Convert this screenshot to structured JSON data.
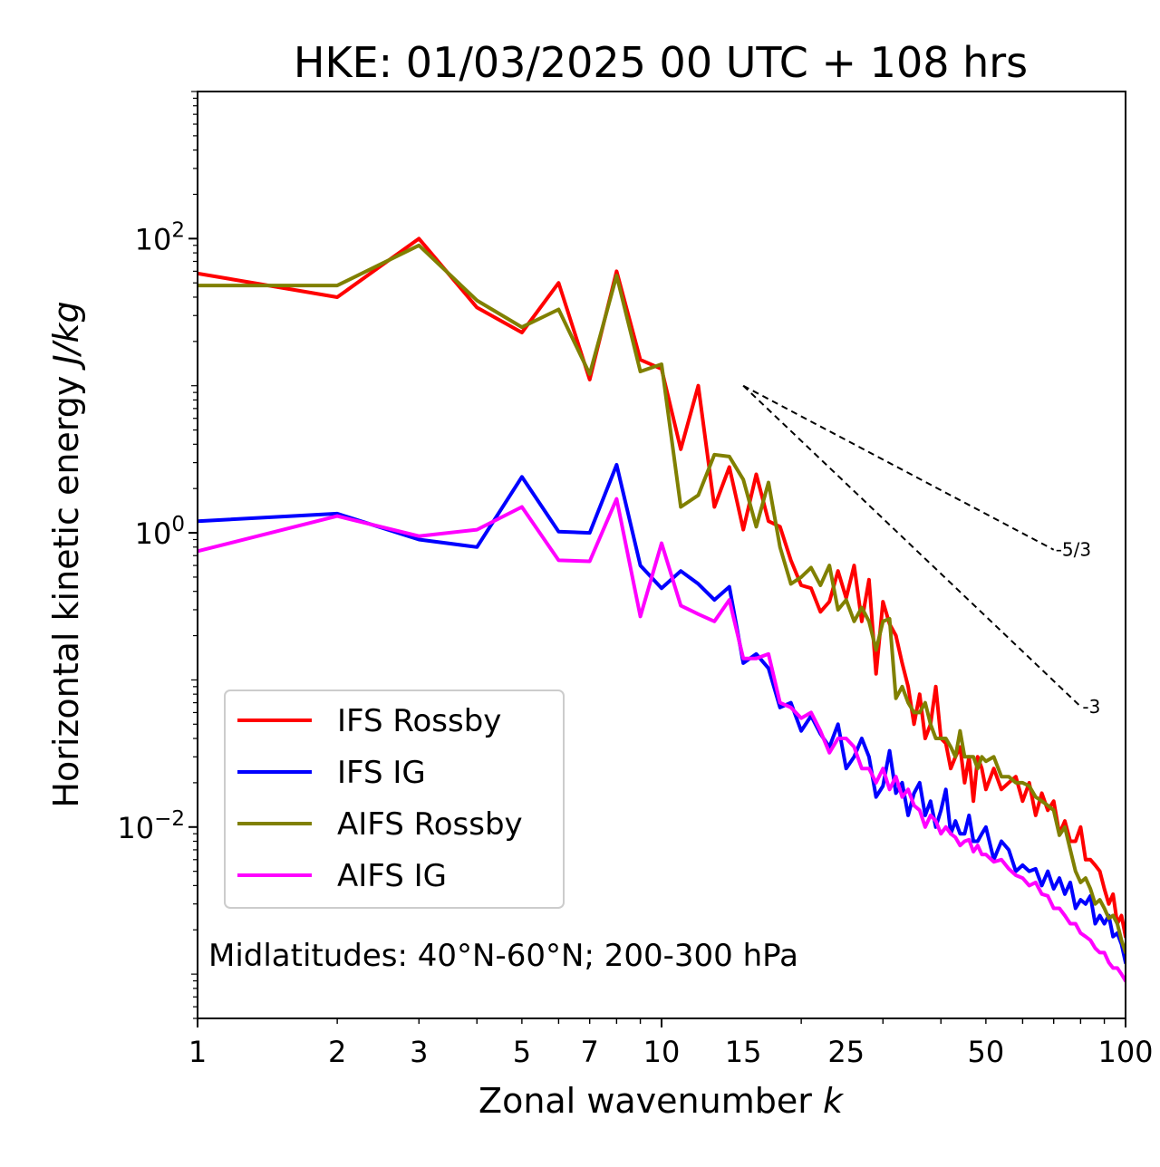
{
  "chart_data": {
    "type": "line",
    "title": "HKE: 01/03/2025 00 UTC + 108 hrs",
    "xlabel": "Zonal wavenumber",
    "xlabel_var": "k",
    "ylabel": "Horizontal kinetic energy",
    "ylabel_units": "J/kg",
    "xscale": "log",
    "yscale": "log",
    "xlim": [
      1,
      100
    ],
    "ylim": [
      0.0005,
      1000
    ],
    "xticks": [
      {
        "value": 1,
        "label": "1"
      },
      {
        "value": 2,
        "label": "2"
      },
      {
        "value": 3,
        "label": "3"
      },
      {
        "value": 5,
        "label": "5"
      },
      {
        "value": 7,
        "label": "7"
      },
      {
        "value": 10,
        "label": "10"
      },
      {
        "value": 15,
        "label": "15"
      },
      {
        "value": 25,
        "label": "25"
      },
      {
        "value": 50,
        "label": "50"
      },
      {
        "value": 100,
        "label": "100"
      }
    ],
    "yticks": [
      {
        "value": 0.01,
        "base": "10",
        "exp": "−2"
      },
      {
        "value": 1,
        "base": "10",
        "exp": "0"
      },
      {
        "value": 100,
        "base": "10",
        "exp": "2"
      }
    ],
    "annotation": "Midlatitudes: 40°N-60°N; 200-300 hPa",
    "legend_position": "lower-left",
    "grid": false,
    "reference_lines": [
      {
        "label": "-5/3",
        "slope": -1.6667,
        "x_start": 15,
        "y_start": 10,
        "x_end": 70
      },
      {
        "label": "-3",
        "slope": -3,
        "x_start": 15,
        "y_start": 10,
        "x_end": 80
      }
    ],
    "series": [
      {
        "name": "IFS Rossby",
        "color": "#ff0000",
        "x": [
          1,
          2,
          3,
          4,
          5,
          6,
          7,
          8,
          9,
          10,
          11,
          12,
          13,
          14,
          15,
          16,
          17,
          18,
          19,
          20,
          21,
          22,
          23,
          24,
          25,
          26,
          27,
          28,
          29,
          30,
          31,
          32,
          33,
          34,
          35,
          36,
          37,
          38,
          39,
          40,
          41,
          42,
          43,
          44,
          45,
          46,
          47,
          48,
          49,
          50,
          52,
          54,
          56,
          58,
          60,
          62,
          64,
          66,
          68,
          70,
          72,
          74,
          76,
          78,
          80,
          82,
          84,
          86,
          88,
          90,
          92,
          94,
          96,
          98,
          100
        ],
        "y": [
          58,
          40,
          100,
          34,
          23,
          50,
          11,
          60,
          15,
          13,
          3.7,
          10,
          1.5,
          2.8,
          1.05,
          2.5,
          1.2,
          1.1,
          0.65,
          0.44,
          0.42,
          0.29,
          0.34,
          0.55,
          0.36,
          0.6,
          0.25,
          0.48,
          0.11,
          0.34,
          0.24,
          0.2,
          0.13,
          0.09,
          0.05,
          0.08,
          0.04,
          0.05,
          0.09,
          0.04,
          0.037,
          0.025,
          0.03,
          0.035,
          0.02,
          0.03,
          0.015,
          0.03,
          0.025,
          0.018,
          0.025,
          0.018,
          0.02,
          0.022,
          0.015,
          0.02,
          0.012,
          0.017,
          0.013,
          0.015,
          0.009,
          0.011,
          0.008,
          0.008,
          0.01,
          0.006,
          0.006,
          0.0055,
          0.005,
          0.0038,
          0.003,
          0.0035,
          0.0022,
          0.0025,
          0.0018
        ]
      },
      {
        "name": "IFS IG",
        "color": "#0000ff",
        "x": [
          1,
          2,
          3,
          4,
          5,
          6,
          7,
          8,
          9,
          10,
          11,
          12,
          13,
          14,
          15,
          16,
          17,
          18,
          19,
          20,
          21,
          22,
          23,
          24,
          25,
          26,
          27,
          28,
          29,
          30,
          31,
          32,
          33,
          34,
          35,
          36,
          37,
          38,
          39,
          40,
          41,
          42,
          43,
          44,
          45,
          46,
          47,
          48,
          49,
          50,
          52,
          54,
          56,
          58,
          60,
          62,
          64,
          66,
          68,
          70,
          72,
          74,
          76,
          78,
          80,
          82,
          84,
          86,
          88,
          90,
          92,
          94,
          96,
          98,
          100
        ],
        "y": [
          1.2,
          1.35,
          0.9,
          0.8,
          2.4,
          1.02,
          1.0,
          2.9,
          0.6,
          0.42,
          0.55,
          0.45,
          0.35,
          0.43,
          0.13,
          0.15,
          0.12,
          0.065,
          0.07,
          0.045,
          0.057,
          0.043,
          0.035,
          0.05,
          0.025,
          0.03,
          0.04,
          0.03,
          0.016,
          0.019,
          0.033,
          0.017,
          0.02,
          0.012,
          0.017,
          0.02,
          0.012,
          0.015,
          0.01,
          0.013,
          0.018,
          0.009,
          0.011,
          0.009,
          0.009,
          0.012,
          0.008,
          0.008,
          0.009,
          0.01,
          0.006,
          0.008,
          0.007,
          0.005,
          0.0055,
          0.005,
          0.0052,
          0.004,
          0.005,
          0.0038,
          0.0045,
          0.0035,
          0.0042,
          0.0028,
          0.0032,
          0.003,
          0.0034,
          0.0022,
          0.0025,
          0.0022,
          0.0025,
          0.0018,
          0.0019,
          0.0016,
          0.0012
        ]
      },
      {
        "name": "AIFS Rossby",
        "color": "#808000",
        "x": [
          1,
          2,
          3,
          4,
          5,
          6,
          7,
          8,
          9,
          10,
          11,
          12,
          13,
          14,
          15,
          16,
          17,
          18,
          19,
          20,
          21,
          22,
          23,
          24,
          25,
          26,
          27,
          28,
          29,
          30,
          31,
          32,
          33,
          34,
          35,
          36,
          37,
          38,
          39,
          40,
          41,
          42,
          43,
          44,
          45,
          46,
          47,
          48,
          49,
          50,
          52,
          54,
          56,
          58,
          60,
          62,
          64,
          66,
          68,
          70,
          72,
          74,
          76,
          78,
          80,
          82,
          84,
          86,
          88,
          90,
          92,
          94,
          96,
          98,
          100
        ],
        "y": [
          48,
          48,
          90,
          38,
          25,
          33,
          12,
          56,
          12.5,
          14,
          1.5,
          1.8,
          3.4,
          3.3,
          2.3,
          1.1,
          2.2,
          0.8,
          0.45,
          0.5,
          0.58,
          0.44,
          0.6,
          0.3,
          0.35,
          0.25,
          0.31,
          0.25,
          0.16,
          0.25,
          0.26,
          0.075,
          0.09,
          0.07,
          0.06,
          0.06,
          0.07,
          0.05,
          0.04,
          0.04,
          0.04,
          0.035,
          0.03,
          0.045,
          0.03,
          0.03,
          0.03,
          0.025,
          0.03,
          0.028,
          0.03,
          0.022,
          0.022,
          0.02,
          0.02,
          0.019,
          0.016,
          0.015,
          0.014,
          0.013,
          0.0088,
          0.01,
          0.007,
          0.005,
          0.0042,
          0.0045,
          0.0038,
          0.003,
          0.0032,
          0.0028,
          0.0024,
          0.0025,
          0.0022,
          0.0017,
          0.0014
        ]
      },
      {
        "name": "AIFS IG",
        "color": "#ff00ff",
        "x": [
          1,
          2,
          3,
          4,
          5,
          6,
          7,
          8,
          9,
          10,
          11,
          12,
          13,
          14,
          15,
          16,
          17,
          18,
          19,
          20,
          21,
          22,
          23,
          24,
          25,
          26,
          27,
          28,
          29,
          30,
          31,
          32,
          33,
          34,
          35,
          36,
          37,
          38,
          39,
          40,
          41,
          42,
          43,
          44,
          45,
          46,
          47,
          48,
          49,
          50,
          52,
          54,
          56,
          58,
          60,
          62,
          64,
          66,
          68,
          70,
          72,
          74,
          76,
          78,
          80,
          82,
          84,
          86,
          88,
          90,
          92,
          94,
          96,
          98,
          100
        ],
        "y": [
          0.75,
          1.3,
          0.95,
          1.05,
          1.5,
          0.65,
          0.64,
          1.7,
          0.27,
          0.85,
          0.32,
          0.28,
          0.25,
          0.35,
          0.14,
          0.14,
          0.15,
          0.07,
          0.065,
          0.055,
          0.06,
          0.045,
          0.032,
          0.04,
          0.04,
          0.035,
          0.025,
          0.025,
          0.02,
          0.025,
          0.018,
          0.022,
          0.016,
          0.018,
          0.014,
          0.013,
          0.01,
          0.012,
          0.011,
          0.009,
          0.01,
          0.009,
          0.0085,
          0.0075,
          0.008,
          0.0082,
          0.0068,
          0.0075,
          0.0065,
          0.0065,
          0.0058,
          0.006,
          0.0052,
          0.0047,
          0.0045,
          0.004,
          0.0042,
          0.0035,
          0.0034,
          0.0028,
          0.0028,
          0.0025,
          0.0022,
          0.0022,
          0.0019,
          0.0018,
          0.0017,
          0.0015,
          0.0014,
          0.0014,
          0.0012,
          0.0011,
          0.0011,
          0.001,
          0.0009
        ]
      }
    ]
  }
}
